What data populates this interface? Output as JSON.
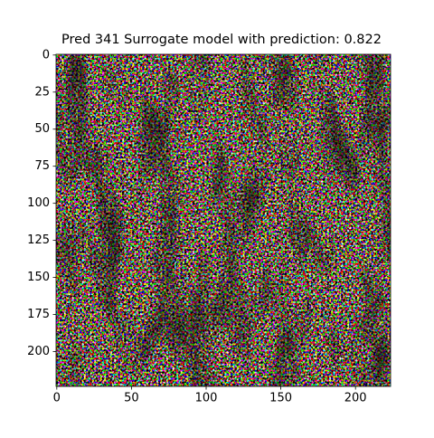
{
  "chart_data": {
    "type": "image",
    "title": "Pred 341 Surrogate model with prediction: 0.822",
    "xlim": [
      -0.5,
      223.5
    ],
    "ylim": [
      223.5,
      -0.5
    ],
    "xticks": [
      0,
      50,
      100,
      150,
      200
    ],
    "yticks": [
      0,
      25,
      50,
      75,
      100,
      125,
      150,
      175,
      200
    ]
  }
}
